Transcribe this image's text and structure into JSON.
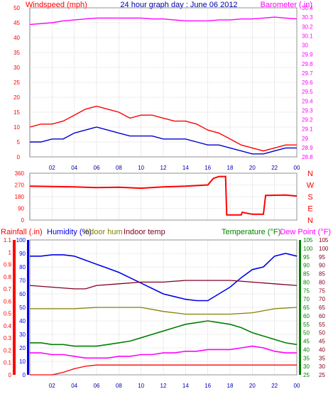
{
  "chart_data": [
    {
      "type": "line",
      "title": "24 hour graph day : June 06 2012",
      "ylabel_left": "Windspeed (mph)",
      "ylabel_right": "Barometer (.in)",
      "x_ticks": [
        "02",
        "04",
        "06",
        "08",
        "10",
        "12",
        "14",
        "16",
        "18",
        "20",
        "22",
        "00"
      ],
      "y_left_ticks": [
        "0",
        "5",
        "10",
        "15",
        "20",
        "25",
        "30",
        "35",
        "40",
        "45",
        "50"
      ],
      "y_left_lim": [
        0,
        50
      ],
      "y_right_ticks": [
        "28.8",
        "28.9",
        "29",
        "29.1",
        "29.2",
        "29.3",
        "29.4",
        "29.5",
        "29.6",
        "29.7",
        "29.8",
        "29.9",
        "30",
        "30.1",
        "30.2",
        "30.3",
        "30.4"
      ],
      "y_right_lim": [
        28.8,
        30.4
      ],
      "series": [
        {
          "kind": "barometer",
          "color": "#ff00ff",
          "x": [
            0,
            1,
            2,
            3,
            4,
            5,
            6,
            7,
            8,
            9,
            10,
            11,
            12,
            13,
            14,
            15,
            16,
            17,
            18,
            19,
            20,
            21,
            22,
            23,
            24
          ],
          "values": [
            30.22,
            30.23,
            30.24,
            30.26,
            30.27,
            30.28,
            30.29,
            30.29,
            30.29,
            30.29,
            30.29,
            30.28,
            30.28,
            30.27,
            30.26,
            30.26,
            30.26,
            30.27,
            30.27,
            30.28,
            30.28,
            30.29,
            30.3,
            30.29,
            30.28
          ]
        },
        {
          "kind": "wind_gust",
          "color": "#ff0000",
          "x": [
            0,
            1,
            2,
            3,
            4,
            5,
            6,
            7,
            8,
            9,
            10,
            11,
            12,
            13,
            14,
            15,
            16,
            17,
            18,
            19,
            20,
            21,
            22,
            23,
            24
          ],
          "values": [
            10,
            11,
            11,
            12,
            14,
            16,
            17,
            16,
            15,
            13,
            14,
            14,
            13,
            12,
            12,
            11,
            9,
            8,
            6,
            4,
            3,
            2,
            3,
            4,
            4
          ]
        },
        {
          "kind": "wind_avg",
          "color": "#0000cc",
          "x": [
            0,
            1,
            2,
            3,
            4,
            5,
            6,
            7,
            8,
            9,
            10,
            11,
            12,
            13,
            14,
            15,
            16,
            17,
            18,
            19,
            20,
            21,
            22,
            23,
            24
          ],
          "values": [
            5,
            5,
            6,
            6,
            8,
            9,
            10,
            9,
            8,
            7,
            7,
            7,
            6,
            6,
            6,
            5,
            4,
            4,
            3,
            2,
            1,
            1,
            2,
            3,
            3
          ]
        }
      ]
    },
    {
      "type": "line",
      "y_ticks": [
        "0",
        "90",
        "180",
        "270",
        "360"
      ],
      "y_lim": [
        0,
        360
      ],
      "compass": [
        "N",
        "W",
        "S",
        "E",
        "N"
      ],
      "series": [
        {
          "kind": "wind_direction",
          "color": "#ff0000",
          "x": [
            0,
            2,
            4,
            6,
            8,
            10,
            12,
            14,
            16,
            16.5,
            17,
            17.6,
            17.7,
            19,
            19.1,
            20,
            21,
            21.2,
            23,
            24
          ],
          "values": [
            260,
            258,
            255,
            250,
            252,
            245,
            255,
            260,
            270,
            320,
            335,
            335,
            40,
            40,
            60,
            45,
            45,
            190,
            192,
            185
          ]
        }
      ]
    },
    {
      "type": "line",
      "legend": [
        "Rainfall (.in)",
        "Humidity (%)",
        "Indoor hum",
        "Indoor temp",
        "Temperature (°F)",
        "Dew Point (°F)"
      ],
      "left_rain_ticks": [
        "0",
        "0.1",
        "0.2",
        "0.3",
        "0.4",
        "0.5",
        "0.6",
        "0.7",
        "0.8",
        "0.9",
        "1",
        "1.1"
      ],
      "left_hum_ticks": [
        "0",
        "10",
        "20",
        "30",
        "40",
        "50",
        "60",
        "70",
        "80",
        "90",
        "100"
      ],
      "right_temp_ticks": [
        "25",
        "30",
        "35",
        "40",
        "45",
        "50",
        "55",
        "60",
        "65",
        "70",
        "75",
        "80",
        "85",
        "90",
        "95",
        "100",
        "105"
      ],
      "rain_lim": [
        0,
        1.1
      ],
      "hum_lim": [
        0,
        100
      ],
      "temp_lim": [
        25,
        105
      ],
      "series": [
        {
          "name": "Humidity (%)",
          "color": "#0000ee",
          "x": [
            0,
            1,
            2,
            3,
            4,
            5,
            6,
            7,
            8,
            9,
            10,
            11,
            12,
            13,
            14,
            15,
            16,
            17,
            18,
            19,
            20,
            21,
            22,
            23,
            24
          ],
          "values": [
            88,
            88,
            89,
            89,
            88,
            85,
            82,
            79,
            76,
            72,
            68,
            64,
            60,
            58,
            56,
            55,
            55,
            60,
            65,
            72,
            78,
            80,
            88,
            90,
            88
          ]
        },
        {
          "name": "Indoor temp",
          "color": "#800020",
          "x": [
            0,
            2,
            4,
            5,
            6,
            8,
            10,
            12,
            14,
            16,
            18,
            20,
            22,
            24
          ],
          "values": [
            78,
            77,
            76,
            76,
            78,
            79,
            80,
            80,
            81,
            81,
            81,
            80,
            79,
            78
          ]
        },
        {
          "name": "Indoor hum",
          "color": "#808000",
          "x": [
            0,
            2,
            4,
            6,
            8,
            10,
            12,
            14,
            16,
            18,
            20,
            22,
            24
          ],
          "values": [
            49,
            49,
            49,
            50,
            50,
            50,
            47,
            45,
            45,
            45,
            46,
            49,
            50
          ]
        },
        {
          "name": "Temperature (°F)",
          "color": "#008000",
          "x": [
            0,
            1,
            2,
            3,
            4,
            5,
            6,
            7,
            8,
            9,
            10,
            11,
            12,
            13,
            14,
            15,
            16,
            17,
            18,
            19,
            20,
            21,
            22,
            23,
            24
          ],
          "values": [
            44,
            44,
            43,
            43,
            42,
            42,
            42,
            43,
            44,
            45,
            47,
            49,
            51,
            53,
            55,
            56,
            57,
            56,
            55,
            53,
            50,
            48,
            46,
            44,
            43
          ]
        },
        {
          "name": "Dew Point (°F)",
          "color": "#ff00ff",
          "x": [
            0,
            1,
            2,
            3,
            4,
            5,
            6,
            7,
            8,
            9,
            10,
            11,
            12,
            13,
            14,
            15,
            16,
            17,
            18,
            19,
            20,
            21,
            22,
            23,
            24
          ],
          "values": [
            38,
            38,
            37,
            37,
            36,
            35,
            35,
            35,
            36,
            36,
            37,
            37,
            38,
            38,
            39,
            39,
            40,
            40,
            40,
            41,
            42,
            41,
            39,
            38,
            38
          ]
        },
        {
          "name": "Rainfall (.in)",
          "color": "#ff0000",
          "x": [
            0,
            2,
            3,
            4,
            5,
            6,
            24
          ],
          "values": [
            0,
            0,
            0.02,
            0.05,
            0.07,
            0.08,
            0.08
          ]
        }
      ]
    }
  ]
}
